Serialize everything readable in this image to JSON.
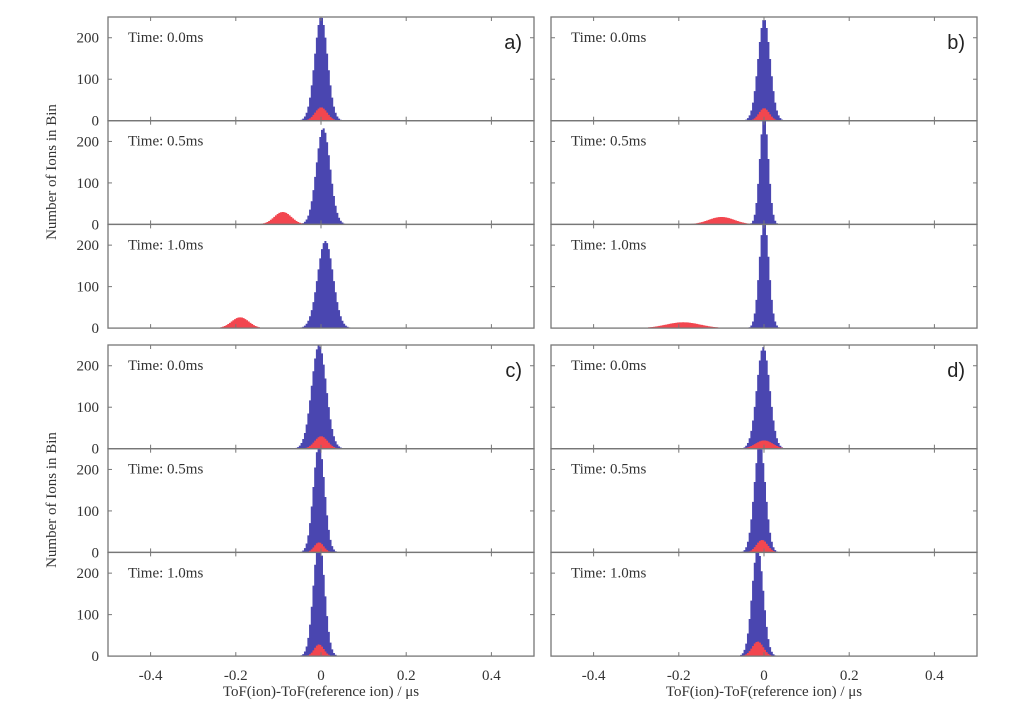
{
  "chart_data": {
    "type": "bar",
    "figure": "histogram grid",
    "xlabel": "ToF(ion)-ToF(reference ion) / μs",
    "ylabel": "Number of Ions in Bin",
    "xlim": [
      -0.5,
      0.5
    ],
    "ylim": [
      0,
      250
    ],
    "x_ticks": [
      -0.4,
      -0.2,
      0,
      0.2,
      0.4
    ],
    "x_tick_labels": [
      "-0.4",
      "-0.2",
      "0",
      "0.2",
      "0.4"
    ],
    "y_ticks": [
      0,
      100,
      200
    ],
    "y_tick_labels": [
      "0",
      "100",
      "200"
    ],
    "colors": {
      "reference": "#4a46b0",
      "species": "#f2464f"
    },
    "panels": [
      {
        "label": "a)",
        "subplots": [
          {
            "time": "Time: 0.0ms",
            "blue": {
              "center": 0.0,
              "sigma": 0.015,
              "peak": 250
            },
            "red": {
              "center": 0.0,
              "sigma": 0.014,
              "peak": 32
            }
          },
          {
            "time": "Time: 0.5ms",
            "blue": {
              "center": 0.005,
              "sigma": 0.016,
              "peak": 232
            },
            "red": {
              "center": -0.09,
              "sigma": 0.02,
              "peak": 30
            }
          },
          {
            "time": "Time: 1.0ms",
            "blue": {
              "center": 0.01,
              "sigma": 0.018,
              "peak": 210
            },
            "red": {
              "center": -0.19,
              "sigma": 0.02,
              "peak": 26
            }
          }
        ]
      },
      {
        "label": "b)",
        "subplots": [
          {
            "time": "Time: 0.0ms",
            "blue": {
              "center": 0.0,
              "sigma": 0.014,
              "peak": 245
            },
            "red": {
              "center": 0.0,
              "sigma": 0.012,
              "peak": 30
            }
          },
          {
            "time": "Time: 0.5ms",
            "blue": {
              "center": 0.0,
              "sigma": 0.01,
              "peak": 260
            },
            "red": {
              "center": -0.1,
              "sigma": 0.03,
              "peak": 18
            }
          },
          {
            "time": "Time: 1.0ms",
            "blue": {
              "center": 0.0,
              "sigma": 0.011,
              "peak": 260
            },
            "red": {
              "center": -0.19,
              "sigma": 0.04,
              "peak": 14
            }
          }
        ]
      },
      {
        "label": "c)",
        "subplots": [
          {
            "time": "Time: 0.0ms",
            "blue": {
              "center": -0.005,
              "sigma": 0.017,
              "peak": 250
            },
            "red": {
              "center": 0.0,
              "sigma": 0.015,
              "peak": 30
            }
          },
          {
            "time": "Time: 0.5ms",
            "blue": {
              "center": -0.005,
              "sigma": 0.013,
              "peak": 260
            },
            "red": {
              "center": -0.005,
              "sigma": 0.011,
              "peak": 24
            }
          },
          {
            "time": "Time: 1.0ms",
            "blue": {
              "center": -0.005,
              "sigma": 0.013,
              "peak": 280
            },
            "red": {
              "center": -0.005,
              "sigma": 0.011,
              "peak": 28
            }
          }
        ]
      },
      {
        "label": "d)",
        "subplots": [
          {
            "time": "Time: 0.0ms",
            "blue": {
              "center": -0.002,
              "sigma": 0.015,
              "peak": 245
            },
            "red": {
              "center": 0.0,
              "sigma": 0.02,
              "peak": 20
            }
          },
          {
            "time": "Time: 0.5ms",
            "blue": {
              "center": -0.01,
              "sigma": 0.013,
              "peak": 260
            },
            "red": {
              "center": -0.005,
              "sigma": 0.013,
              "peak": 30
            }
          },
          {
            "time": "Time: 1.0ms",
            "blue": {
              "center": -0.015,
              "sigma": 0.013,
              "peak": 260
            },
            "red": {
              "center": -0.015,
              "sigma": 0.013,
              "peak": 35
            }
          }
        ]
      }
    ]
  }
}
